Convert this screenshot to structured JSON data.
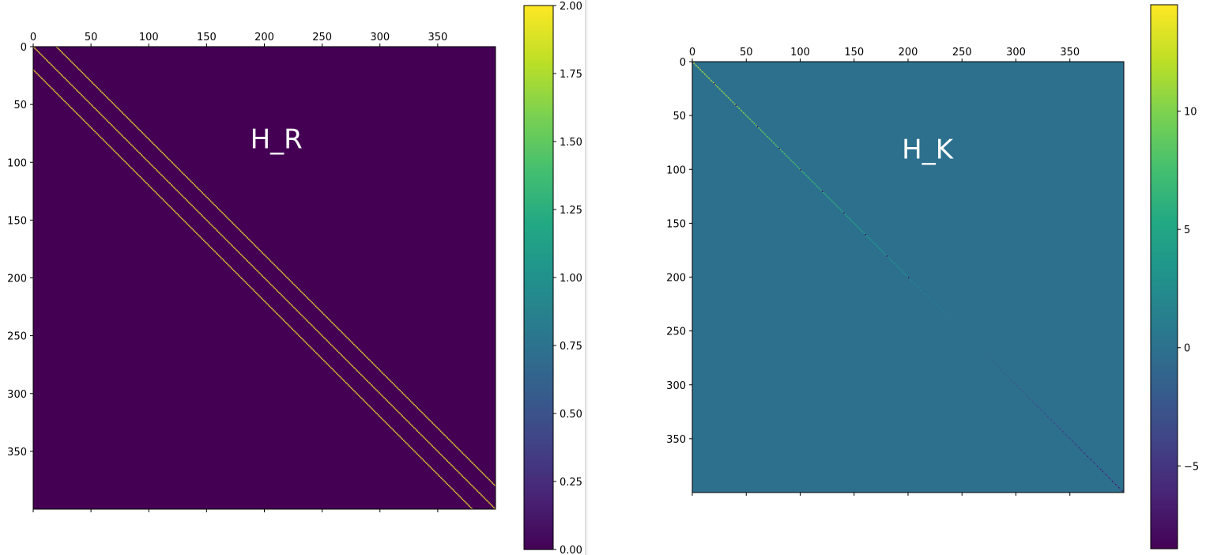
{
  "chart_data": [
    {
      "type": "heatmap",
      "annotation": "H_R",
      "matrix_size": 400,
      "xticks": [
        0,
        50,
        100,
        150,
        200,
        250,
        300,
        350
      ],
      "yticks": [
        0,
        50,
        100,
        150,
        200,
        250,
        300,
        350
      ],
      "xlim": [
        0,
        400
      ],
      "ylim": [
        400,
        0
      ],
      "background_value": 0,
      "bands": [
        {
          "offset": 0,
          "value": 2,
          "row_start": 0,
          "row_end": 399
        },
        {
          "offset": 20,
          "value": 2,
          "row_start": 0,
          "row_end": 379
        },
        {
          "offset": -20,
          "value": 2,
          "row_start": 20,
          "row_end": 399
        }
      ],
      "colorbar": {
        "vmin": 0,
        "vmax": 2,
        "ticks": [
          "0.00",
          "0.25",
          "0.50",
          "0.75",
          "1.00",
          "1.25",
          "1.50",
          "1.75",
          "2.00"
        ]
      },
      "colormap": "viridis",
      "grid": false
    },
    {
      "type": "heatmap",
      "annotation": "H_K",
      "matrix_size": 400,
      "xticks": [
        0,
        50,
        100,
        150,
        200,
        250,
        300,
        350
      ],
      "yticks": [
        0,
        50,
        100,
        150,
        200,
        250,
        300,
        350
      ],
      "xlim": [
        0,
        400
      ],
      "ylim": [
        400,
        0
      ],
      "background_value": 0,
      "diagonal": {
        "start_value": 14.5,
        "end_value": -8.5,
        "block_period": 20,
        "note": "values decay along the main diagonal from positive to negative"
      },
      "colorbar": {
        "vmin": -8.5,
        "vmax": 14.5,
        "ticks": [
          "−5",
          "0",
          "5",
          "10"
        ],
        "tick_values": [
          -5,
          0,
          5,
          10
        ]
      },
      "colormap": "viridis",
      "grid": false
    }
  ]
}
